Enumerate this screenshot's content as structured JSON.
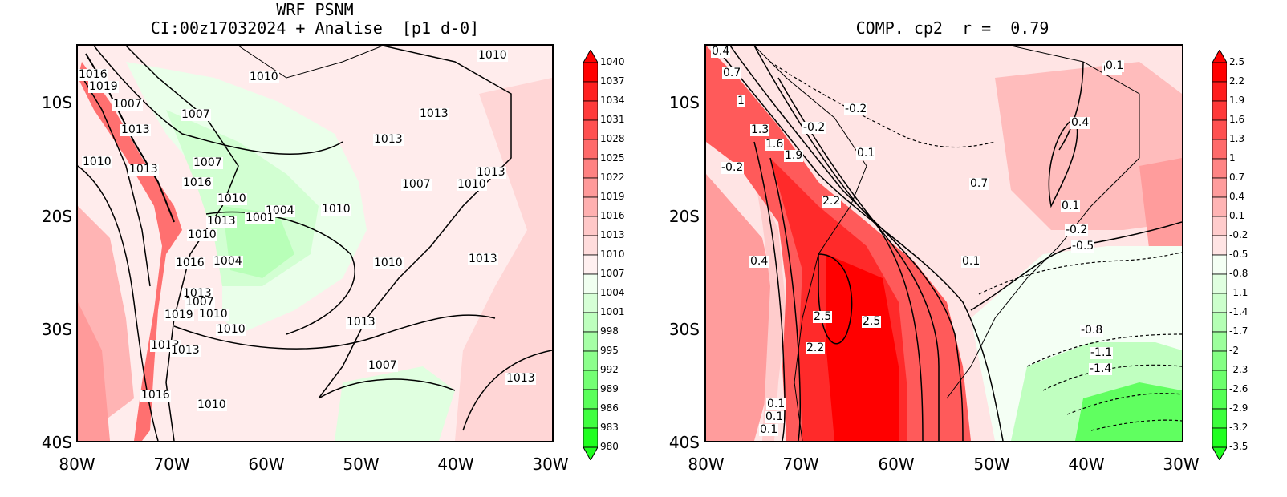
{
  "left": {
    "title_line1": "WRF PSNM",
    "title_line2": "CI:00z17032024 + Analise  [p1 d-0]",
    "yticks": [
      "10S",
      "20S",
      "30S",
      "40S"
    ],
    "xticks": [
      "80W",
      "70W",
      "60W",
      "50W",
      "40W",
      "30W"
    ],
    "colorbar": [
      "1040",
      "1037",
      "1034",
      "1031",
      "1028",
      "1025",
      "1022",
      "1019",
      "1016",
      "1013",
      "1010",
      "1007",
      "1004",
      "1001",
      "998",
      "995",
      "992",
      "989",
      "986",
      "983",
      "980"
    ],
    "colorbar_colors": [
      "#ff0000",
      "#ff2020",
      "#ff3a3a",
      "#ff5050",
      "#ff6a6a",
      "#ff8282",
      "#ff9a9a",
      "#ffb0b0",
      "#ffc8c8",
      "#ffdcdc",
      "#fff0f0",
      "#f0fff0",
      "#d6ffd6",
      "#beffbe",
      "#a6ffa6",
      "#8cff8c",
      "#74ff74",
      "#5aff5a",
      "#40ff40",
      "#20ff20"
    ],
    "contour_labels": [
      "1016",
      "1019",
      "1007",
      "1013",
      "1010",
      "1013",
      "1007",
      "1010",
      "1007",
      "1016",
      "1010",
      "1013",
      "1004",
      "1010",
      "1004",
      "1016",
      "1013",
      "1007",
      "1019",
      "1010",
      "1010",
      "1013",
      "1013",
      "1013",
      "1013",
      "1010",
      "1007",
      "1010",
      "1013",
      "1013",
      "1010",
      "1010",
      "1007",
      "1016",
      "1010",
      "1013",
      "1013",
      "1001"
    ]
  },
  "right": {
    "title": "COMP. cp2  r =  0.79",
    "yticks": [
      "10S",
      "20S",
      "30S",
      "40S"
    ],
    "xticks": [
      "80W",
      "70W",
      "60W",
      "50W",
      "40W",
      "30W"
    ],
    "colorbar": [
      "2.5",
      "2.2",
      "1.9",
      "1.6",
      "1.3",
      "1",
      "0.7",
      "0.4",
      "0.1",
      "-0.2",
      "-0.5",
      "-0.8",
      "-1.1",
      "-1.4",
      "-1.7",
      "-2",
      "-2.3",
      "-2.6",
      "-2.9",
      "-3.2",
      "-3.5"
    ],
    "colorbar_colors": [
      "#ff0000",
      "#ff1c1c",
      "#ff3838",
      "#ff5050",
      "#ff6a6a",
      "#ff8484",
      "#ff9c9c",
      "#ffb4b4",
      "#ffcccc",
      "#ffe4e4",
      "#f4fff4",
      "#e0ffe0",
      "#ccffcc",
      "#b4ffb4",
      "#9cff9c",
      "#84ff84",
      "#6cff6c",
      "#54ff54",
      "#3cff3c",
      "#20ff20"
    ],
    "contour_labels": [
      "0.4",
      "0.7",
      "1",
      "1.3",
      "1.6",
      "1.9",
      "-0.2",
      "-0.2",
      "0.1",
      "-0.2",
      "2.2",
      "0.4",
      "2.5",
      "2.5",
      "2.2",
      "0.1",
      "0.1",
      "0.1",
      "0.4",
      "0.7",
      "0.1",
      "0.1",
      "0.4",
      "0.1",
      "-0.2",
      "-0.5",
      "-0.8",
      "-1.1",
      "-1.4"
    ]
  }
}
